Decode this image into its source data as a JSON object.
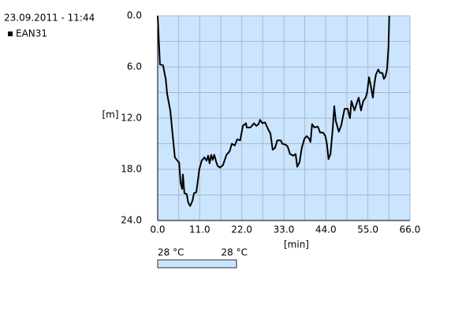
{
  "header": "23.09.2011 - 11:44",
  "chart_data": {
    "type": "line",
    "xlabel": "[min]",
    "ylabel": "[m]",
    "xlim": [
      0,
      66
    ],
    "ylim": [
      0,
      24
    ],
    "y_inverted": true,
    "xticks": [
      {
        "value": 0,
        "label": "0.0"
      },
      {
        "value": 11,
        "label": "11.0"
      },
      {
        "value": 22,
        "label": "22.0"
      },
      {
        "value": 33,
        "label": "33.0"
      },
      {
        "value": 44,
        "label": "44.0"
      },
      {
        "value": 55,
        "label": "55.0"
      },
      {
        "value": 66,
        "label": "66.0"
      }
    ],
    "yticks": [
      {
        "value": 0,
        "label": "0.0"
      },
      {
        "value": 6,
        "label": "6.0"
      },
      {
        "value": 12,
        "label": "12.0"
      },
      {
        "value": 18,
        "label": "18.0"
      },
      {
        "value": 24,
        "label": "24.0"
      }
    ],
    "xminor": [
      5.5,
      16.5,
      27.5,
      38.5,
      49.5,
      60.5
    ],
    "yminor": [
      3,
      9,
      15,
      21
    ],
    "grid": true,
    "series": [
      {
        "name": "EAN31",
        "color": "#000000",
        "x": [
          0,
          0.6,
          1.4,
          2.1,
          2.5,
          3.3,
          3.7,
          4.1,
          4.5,
          5.2,
          5.6,
          6.0,
          6.4,
          6.6,
          7.0,
          7.6,
          8.0,
          8.5,
          9.1,
          9.5,
          10.1,
          10.5,
          10.9,
          11.5,
          12.2,
          12.8,
          13.2,
          13.6,
          14.0,
          14.4,
          14.8,
          15.3,
          15.7,
          16.3,
          17.1,
          18.0,
          18.8,
          19.4,
          20.2,
          20.8,
          21.6,
          22.3,
          23.1,
          23.3,
          24.3,
          25.2,
          25.8,
          26.4,
          26.8,
          27.4,
          28.1,
          28.5,
          28.9,
          29.5,
          30.1,
          30.7,
          31.3,
          32.2,
          32.6,
          33.4,
          34.0,
          34.6,
          35.5,
          36.1,
          36.5,
          37.1,
          37.7,
          38.4,
          39.0,
          39.6,
          40.0,
          40.4,
          41.0,
          41.9,
          42.5,
          43.3,
          43.9,
          44.3,
          44.7,
          45.2,
          45.8,
          46.2,
          46.6,
          47.4,
          48.0,
          48.9,
          49.7,
          50.3,
          50.7,
          51.5,
          52.2,
          52.6,
          53.2,
          53.8,
          54.4,
          54.8,
          55.3,
          55.7,
          56.3,
          56.7,
          57.1,
          57.7,
          58.2,
          58.8,
          59.2,
          59.6,
          60.0,
          60.4,
          60.6
        ],
        "values": [
          0,
          5.7,
          5.8,
          7.4,
          9.2,
          11.1,
          12.9,
          14.8,
          16.6,
          17.0,
          17.2,
          19.6,
          20.3,
          18.6,
          20.8,
          20.9,
          21.9,
          22.3,
          21.7,
          20.8,
          20.7,
          19.4,
          18.0,
          17.0,
          16.6,
          17.0,
          16.4,
          17.3,
          16.3,
          16.9,
          16.3,
          17.1,
          17.6,
          17.8,
          17.5,
          16.3,
          15.9,
          15.0,
          15.2,
          14.5,
          14.6,
          12.9,
          12.6,
          13.1,
          13.1,
          12.6,
          12.9,
          12.7,
          12.2,
          12.6,
          12.5,
          12.9,
          13.3,
          13.8,
          15.7,
          15.5,
          14.6,
          14.6,
          15.0,
          15.1,
          15.3,
          16.2,
          16.4,
          16.2,
          17.7,
          17.2,
          15.5,
          14.4,
          14.1,
          14.4,
          14.8,
          12.7,
          13.1,
          13.0,
          13.7,
          13.7,
          14.1,
          15.1,
          16.8,
          16.2,
          13.2,
          10.6,
          12.3,
          13.6,
          12.9,
          10.9,
          10.9,
          12.0,
          10.0,
          11.1,
          10.1,
          9.6,
          11.1,
          10.0,
          9.6,
          9.0,
          7.2,
          8.1,
          9.6,
          8.0,
          6.9,
          6.3,
          6.7,
          6.7,
          7.4,
          7.1,
          6.3,
          3.7,
          0
        ]
      }
    ],
    "legend": "top-left",
    "plot_color": "#cce5ff",
    "temperature_labels": [
      "28 °C",
      "28 °C"
    ]
  }
}
